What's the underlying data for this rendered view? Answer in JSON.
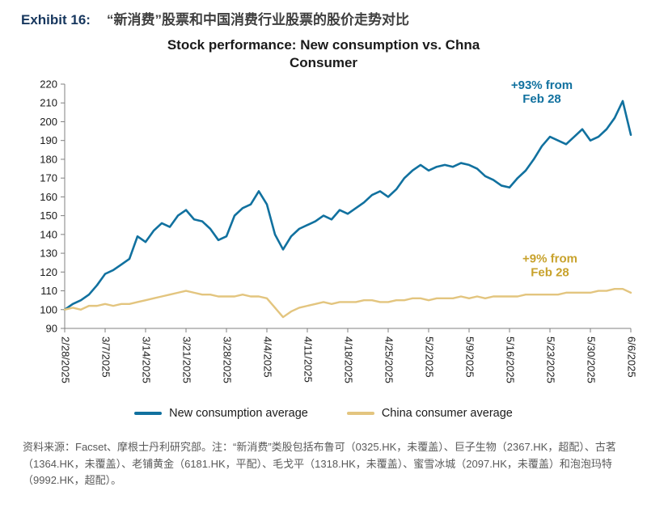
{
  "header": {
    "exhibit_label": "Exhibit 16:",
    "exhibit_title_zh": "“新消费”股票和中国消费行业股票的股价走势对比"
  },
  "chart_data": {
    "type": "line",
    "title": "Stock performance: New consumption vs. Chna Consumer",
    "ylim": [
      90,
      220
    ],
    "y_tick_step": 10,
    "grid": false,
    "legend_position": "bottom",
    "axis_color": "#808080",
    "tick_text_color": "#1a1a1a",
    "x_tick_labels": [
      "2/28/2025",
      "3/7/2025",
      "3/14/2025",
      "3/21/2025",
      "3/28/2025",
      "4/4/2025",
      "4/11/2025",
      "4/18/2025",
      "4/25/2025",
      "5/2/2025",
      "5/9/2025",
      "5/16/2025",
      "5/23/2025",
      "5/30/2025",
      "6/6/2025"
    ],
    "x_tick_indices": [
      0,
      5,
      10,
      15,
      20,
      25,
      30,
      35,
      40,
      45,
      50,
      55,
      60,
      65,
      70
    ],
    "series": [
      {
        "id": "new-consumption",
        "name": "New consumption average",
        "color": "#11719f",
        "width": 2.6,
        "values": [
          100,
          103,
          105,
          108,
          113,
          119,
          121,
          124,
          127,
          139,
          136,
          142,
          146,
          144,
          150,
          153,
          148,
          147,
          143,
          137,
          139,
          150,
          154,
          156,
          163,
          156,
          140,
          132,
          139,
          143,
          145,
          147,
          150,
          148,
          153,
          151,
          154,
          157,
          161,
          163,
          160,
          164,
          170,
          174,
          177,
          174,
          176,
          177,
          176,
          178,
          177,
          175,
          171,
          169,
          166,
          165,
          170,
          174,
          180,
          187,
          192,
          190,
          188,
          192,
          196,
          190,
          192,
          196,
          202,
          211,
          193
        ]
      },
      {
        "id": "china-consumer",
        "name": "China consumer average",
        "color": "#e3c57f",
        "width": 2.4,
        "values": [
          100,
          101,
          100,
          102,
          102,
          103,
          102,
          103,
          103,
          104,
          105,
          106,
          107,
          108,
          109,
          110,
          109,
          108,
          108,
          107,
          107,
          107,
          108,
          107,
          107,
          106,
          101,
          96,
          99,
          101,
          102,
          103,
          104,
          103,
          104,
          104,
          104,
          105,
          105,
          104,
          104,
          105,
          105,
          106,
          106,
          105,
          106,
          106,
          106,
          107,
          106,
          107,
          106,
          107,
          107,
          107,
          107,
          108,
          108,
          108,
          108,
          108,
          109,
          109,
          109,
          109,
          110,
          110,
          111,
          111,
          109
        ]
      }
    ],
    "annotations": [
      {
        "id": "new-consumption-gain",
        "lines": [
          "+93% from",
          "Feb 28"
        ],
        "color": "#11719f",
        "x_index": 59,
        "y_value": 217.5
      },
      {
        "id": "china-consumer-gain",
        "lines": [
          "+9% from",
          "Feb 28"
        ],
        "color": "#c8a22c",
        "x_index": 60,
        "y_value": 125
      }
    ]
  },
  "footer": {
    "source_note": "资料来源：Facset、摩根士丹利研究部。注：“新消费”类股包括布鲁可（0325.HK，未覆盖）、巨子生物（2367.HK，超配）、古茗（1364.HK，未覆盖）、老铺黄金（6181.HK，平配）、毛戈平（1318.HK，未覆盖）、蜜雪冰城（2097.HK，未覆盖）和泡泡玛特（9992.HK，超配）。"
  }
}
